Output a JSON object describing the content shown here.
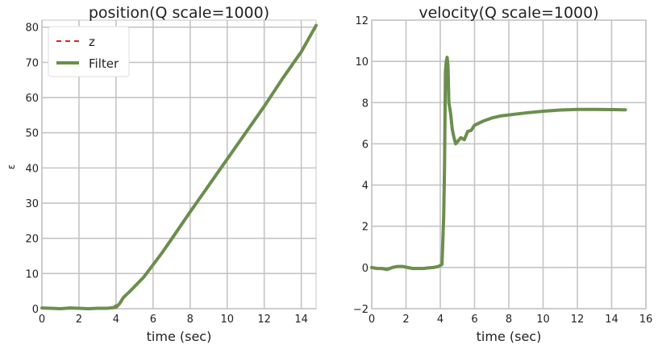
{
  "colors": {
    "filter": "#6b8e4e",
    "measurement": "#d62728",
    "grid": "#c4c4c4"
  },
  "chart_data": [
    {
      "type": "line",
      "title": "position(Q scale=1000)",
      "xlabel": "time (sec)",
      "ylabel": "ε",
      "xlim": [
        0,
        14.8
      ],
      "ylim": [
        0,
        82
      ],
      "xticks": [
        0,
        2,
        4,
        6,
        8,
        10,
        12,
        14
      ],
      "yticks": [
        0,
        10,
        20,
        30,
        40,
        50,
        60,
        70,
        80
      ],
      "grid": true,
      "legend": "top-left",
      "series": [
        {
          "name": "z",
          "style": "dashed",
          "color": "#d62728",
          "x": [
            0,
            0.5,
            1.0,
            1.5,
            2.0,
            2.5,
            3.0,
            3.5,
            3.8,
            4.0,
            4.1
          ],
          "y": [
            0.2,
            0.1,
            0.0,
            0.4,
            0.1,
            0.0,
            0.1,
            0.1,
            0.3,
            1.0,
            0.6
          ]
        },
        {
          "name": "Filter",
          "style": "solid",
          "color": "#6b8e4e",
          "x": [
            0,
            0.5,
            1.0,
            1.5,
            2.0,
            2.5,
            3.0,
            3.5,
            4.0,
            4.2,
            4.4,
            4.6,
            4.8,
            5.0,
            5.5,
            6.0,
            6.5,
            7.0,
            8.0,
            9.0,
            10.0,
            11.0,
            12.0,
            13.0,
            14.0,
            14.8
          ],
          "y": [
            0.2,
            0.1,
            0.0,
            0.2,
            0.1,
            0.0,
            0.1,
            0.1,
            0.4,
            1.5,
            3.2,
            4.2,
            5.2,
            6.3,
            9.0,
            12.5,
            16.0,
            19.8,
            27.5,
            35.0,
            42.5,
            50.0,
            57.5,
            65.5,
            73.0,
            80.5
          ]
        }
      ]
    },
    {
      "type": "line",
      "title": "velocity(Q scale=1000)",
      "xlabel": "time (sec)",
      "ylabel": "",
      "xlim": [
        0,
        16
      ],
      "ylim": [
        -2,
        12
      ],
      "xticks": [
        0,
        2,
        4,
        6,
        8,
        10,
        12,
        14,
        16
      ],
      "yticks": [
        -2,
        0,
        2,
        4,
        6,
        8,
        10,
        12
      ],
      "grid": true,
      "series": [
        {
          "name": "",
          "style": "solid",
          "color": "#6b8e4e",
          "x": [
            0,
            0.3,
            0.6,
            0.9,
            1.2,
            1.5,
            1.8,
            2.1,
            2.4,
            2.7,
            3.0,
            3.3,
            3.6,
            3.9,
            4.1,
            4.2,
            4.25,
            4.3,
            4.35,
            4.4,
            4.45,
            4.5,
            4.6,
            4.7,
            4.8,
            4.9,
            5.0,
            5.2,
            5.4,
            5.6,
            5.8,
            6.0,
            6.5,
            7.0,
            7.5,
            8.0,
            9.0,
            10.0,
            11.0,
            12.0,
            13.0,
            14.0,
            14.8
          ],
          "y": [
            0.0,
            -0.05,
            -0.05,
            -0.1,
            0.0,
            0.05,
            0.05,
            0.0,
            -0.05,
            -0.05,
            -0.05,
            -0.02,
            0.0,
            0.05,
            0.15,
            2.5,
            5.0,
            9.5,
            10.0,
            10.2,
            9.8,
            8.0,
            7.5,
            6.7,
            6.3,
            6.0,
            6.1,
            6.3,
            6.2,
            6.6,
            6.65,
            6.9,
            7.1,
            7.25,
            7.35,
            7.4,
            7.5,
            7.58,
            7.64,
            7.67,
            7.67,
            7.66,
            7.65
          ]
        }
      ]
    }
  ]
}
